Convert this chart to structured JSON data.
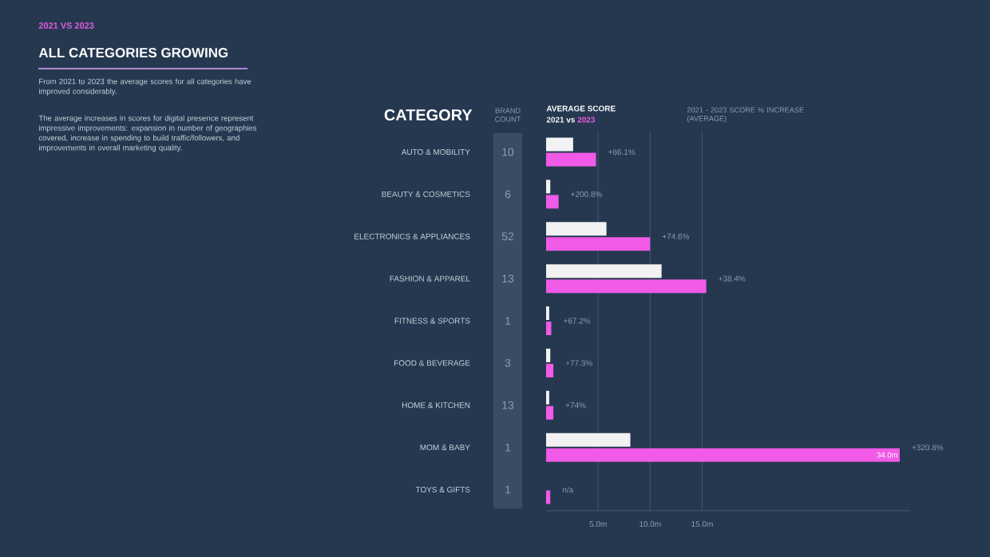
{
  "chart_data": {
    "type": "bar",
    "orientation": "horizontal",
    "subtitle": "2021 VS 2023",
    "title": "ALL CATEGORIES GROWING",
    "ylabel": "CATEGORY",
    "legend_title": "AVERAGE SCORE",
    "legend": "top left",
    "grid": "x",
    "categories": [
      "AUTO & MOBILITY",
      "BEAUTY & COSMETICS",
      "ELECTRONICS & APPLIANCES",
      "FASHION & APPAREL",
      "FITNESS & SPORTS",
      "FOOD & BEVERAGE",
      "HOME & KITCHEN",
      "MOM & BABY",
      "TOYS & GIFTS"
    ],
    "series": [
      {
        "name": "2021",
        "color": "#f2f2f2",
        "values": [
          2.6,
          0.4,
          5.8,
          11.1,
          0.3,
          0.4,
          0.3,
          8.1,
          null
        ]
      },
      {
        "name": "2023",
        "color": "#f05ae6",
        "values": [
          4.8,
          1.2,
          10.0,
          15.4,
          0.5,
          0.7,
          0.7,
          34.0,
          0.4
        ],
        "value_labels": [
          null,
          null,
          null,
          null,
          null,
          null,
          null,
          "34.0m",
          null
        ]
      }
    ],
    "xlim": [
      0,
      35
    ],
    "xticks": [
      {
        "value": 5,
        "label": "5.0m"
      },
      {
        "value": 10,
        "label": "10.0m"
      },
      {
        "value": 15,
        "label": "15.0m"
      }
    ],
    "annotations": [
      "From 2021 to 2023 the average scores for all categories have improved considerably.",
      "The average increases in scores for digital presence represent impressive improvements: expansion in number of geographies covered, increase in spending to build traffic/followers, and improvements in overall marketing quality.",
      "BRAND COUNT",
      "vs",
      "2021 - 2023 SCORE % INCREASE (AVERAGE)",
      "10",
      "6",
      "52",
      "13",
      "1",
      "3",
      "13",
      "1",
      "1",
      {
        "text": "+86.1%",
        "x": 4.8,
        "y": "AUTO & MOBILITY"
      },
      {
        "text": "+200.8%",
        "x": 1.2,
        "y": "BEAUTY & COSMETICS"
      },
      {
        "text": "+74.6%",
        "x": 10.0,
        "y": "ELECTRONICS & APPLIANCES"
      },
      {
        "text": "+38.4%",
        "x": 15.4,
        "y": "FASHION & APPAREL"
      },
      {
        "text": "+67.2%",
        "x": 0.5,
        "y": "FITNESS & SPORTS"
      },
      {
        "text": "+77.3%",
        "x": 0.7,
        "y": "FOOD & BEVERAGE"
      },
      {
        "text": "+74%",
        "x": 0.7,
        "y": "HOME & KITCHEN"
      },
      {
        "text": "+320.8%",
        "x": 34.0,
        "y": "MOM & BABY"
      },
      {
        "text": "n/a",
        "x": 0.4,
        "y": "TOYS & GIFTS"
      }
    ]
  }
}
